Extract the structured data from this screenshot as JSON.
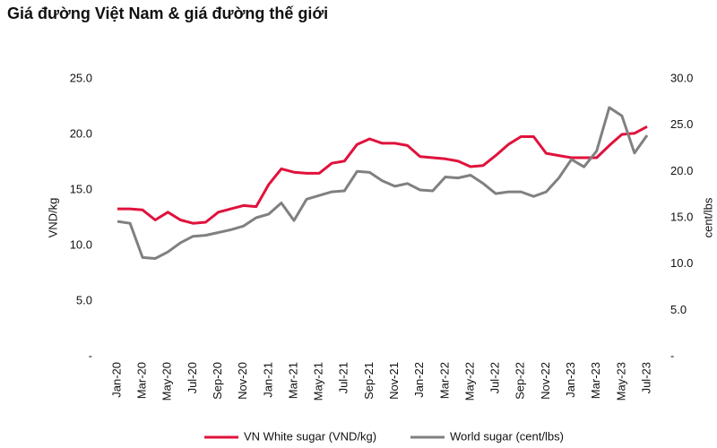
{
  "chart_data": {
    "type": "line",
    "title": "Giá đường Việt Nam & giá đường thế giới",
    "ylabel": "VND/kg",
    "y2label": "cent/lbs",
    "categories": [
      "Jan-20",
      null,
      "Mar-20",
      null,
      "May-20",
      null,
      "Jul-20",
      null,
      "Sep-20",
      null,
      "Nov-20",
      null,
      "Jan-21",
      null,
      "Mar-21",
      null,
      "May-21",
      null,
      "Jul-21",
      null,
      "Sep-21",
      null,
      "Nov-21",
      null,
      "Jan-22",
      null,
      "Mar-22",
      null,
      "May-22",
      null,
      "Jul-22",
      null,
      "Sep-22",
      null,
      "Nov-22",
      null,
      "Jan-23",
      null,
      "Mar-23",
      null,
      "May-23",
      null,
      "Jul-23"
    ],
    "series": [
      {
        "name": "VN White sugar (VND/kg)",
        "color": "#e0123c",
        "axis": "y",
        "values": [
          13.3,
          13.3,
          13.2,
          12.3,
          13.0,
          12.3,
          12.0,
          12.1,
          13.0,
          13.3,
          13.6,
          13.5,
          15.5,
          16.9,
          16.6,
          16.5,
          16.5,
          17.4,
          17.6,
          19.1,
          19.6,
          19.2,
          19.2,
          19.0,
          18.0,
          17.9,
          17.8,
          17.6,
          17.1,
          17.2,
          18.1,
          19.1,
          19.8,
          19.8,
          18.3,
          18.1,
          17.9,
          17.9,
          17.9,
          19.0,
          20.0,
          20.1,
          20.7
        ]
      },
      {
        "name": "World sugar (cent/lbs)",
        "color": "#808080",
        "axis": "y2",
        "values": [
          14.6,
          14.4,
          10.7,
          10.6,
          11.3,
          12.3,
          13.0,
          13.1,
          13.4,
          13.7,
          14.1,
          15.0,
          15.4,
          16.6,
          14.7,
          17.0,
          17.4,
          17.8,
          17.9,
          20.0,
          19.9,
          19.0,
          18.4,
          18.7,
          18.0,
          17.9,
          19.4,
          19.3,
          19.6,
          18.7,
          17.6,
          17.8,
          17.8,
          17.3,
          17.8,
          19.3,
          21.3,
          20.5,
          22.2,
          26.9,
          26.0,
          22.0,
          23.9
        ]
      }
    ],
    "ylim": [
      0,
      25
    ],
    "yticks": [
      {
        "value": 0,
        "label": "-"
      },
      {
        "value": 5,
        "label": "5.0"
      },
      {
        "value": 10,
        "label": "10.0"
      },
      {
        "value": 15,
        "label": "15.0"
      },
      {
        "value": 20,
        "label": "20.0"
      },
      {
        "value": 25,
        "label": "25.0"
      }
    ],
    "y2lim": [
      0,
      30
    ],
    "y2ticks": [
      {
        "value": 0,
        "label": "-"
      },
      {
        "value": 5,
        "label": "5.0"
      },
      {
        "value": 10,
        "label": "10.0"
      },
      {
        "value": 15,
        "label": "15.0"
      },
      {
        "value": 20,
        "label": "20.0"
      },
      {
        "value": 25,
        "label": "25.0"
      },
      {
        "value": 30,
        "label": "30.0"
      }
    ],
    "legend": "bottom"
  }
}
